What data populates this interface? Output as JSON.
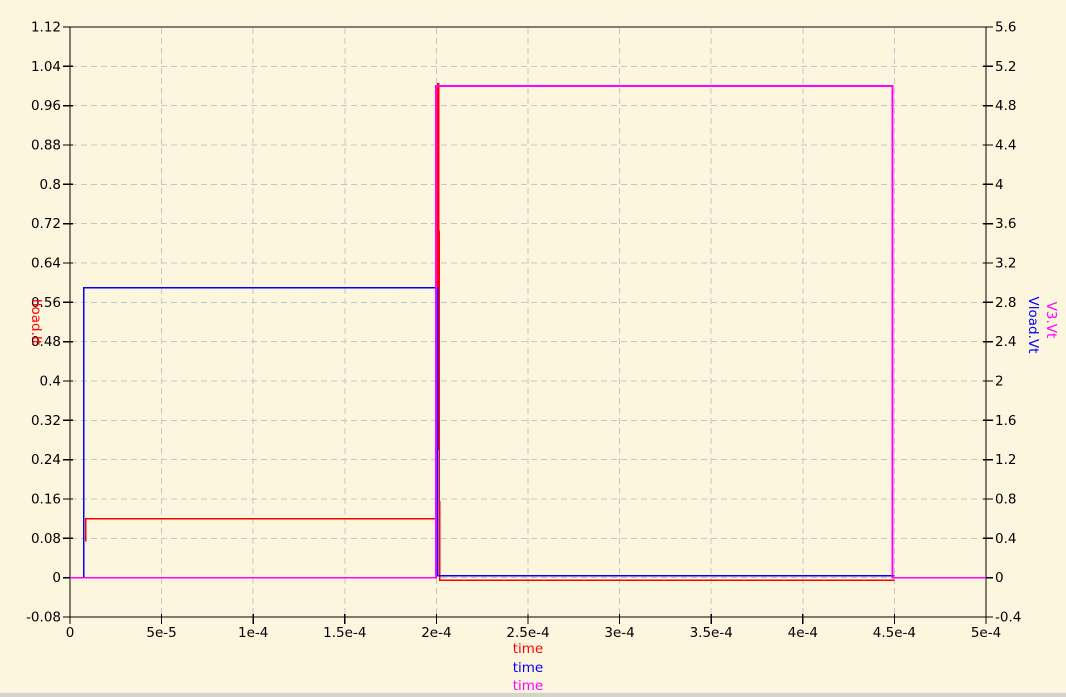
{
  "colors": {
    "background": "#fdf6df",
    "grid": "#c6c6c6",
    "axis": "#000000",
    "bottom_strip": "#d6d3ca"
  },
  "chart_data": {
    "type": "line",
    "title": "",
    "xlabel": "time",
    "xlim": [
      0,
      0.0005
    ],
    "grid": true,
    "legend_position": "none",
    "x_tick_values": [
      0,
      5e-05,
      0.0001,
      0.00015,
      0.0002,
      0.00025,
      0.0003,
      0.00035,
      0.0004,
      0.00045,
      0.0005
    ],
    "x_tick_labels": [
      "0",
      "5e-5",
      "1e-4",
      "1.5e-4",
      "2e-4",
      "2.5e-4",
      "3e-4",
      "3.5e-4",
      "4e-4",
      "4.5e-4",
      "5e-4"
    ],
    "x_axis_titles": [
      {
        "text": "time",
        "color": "#ff0000"
      },
      {
        "text": "time",
        "color": "#0000ff"
      },
      {
        "text": "time",
        "color": "#ff00ff"
      }
    ],
    "y_left": {
      "title": "Iload.It",
      "color": "#ff0000",
      "lim": [
        -0.08,
        1.12
      ],
      "tick_values": [
        1.12,
        1.04,
        0.96,
        0.88,
        0.8,
        0.72,
        0.64,
        0.56,
        0.48,
        0.4,
        0.32,
        0.24,
        0.16,
        0.08,
        0,
        -0.08
      ],
      "tick_labels": [
        "1.12",
        "1.04",
        "0.96",
        "0.88",
        "0.8",
        "0.72",
        "0.64",
        "0.56",
        "0.48",
        "0.4",
        "0.32",
        "0.24",
        "0.16",
        "0.08",
        "0",
        "-0.08"
      ]
    },
    "y_right": {
      "titles": [
        {
          "text": "Vload.Vt",
          "color": "#0000ff"
        },
        {
          "text": "V3.Vt",
          "color": "#ff00ff"
        }
      ],
      "lim": [
        -0.4,
        5.6
      ],
      "tick_values": [
        5.6,
        5.2,
        4.8,
        4.4,
        4,
        3.6,
        3.2,
        2.8,
        2.4,
        2,
        1.6,
        1.2,
        0.8,
        0.4,
        0,
        -0.4
      ],
      "tick_labels": [
        "5.6",
        "5.2",
        "4.8",
        "4.4",
        "4",
        "3.6",
        "3.2",
        "2.8",
        "2.4",
        "2",
        "1.6",
        "1.2",
        "0.8",
        "0.4",
        "0",
        "-0.4"
      ]
    },
    "series": [
      {
        "name": "Iload.It",
        "color": "#ff0000",
        "axis": "left",
        "width": 1.4,
        "points": [
          [
            8.5e-06,
            0.074
          ],
          [
            8.5e-06,
            0.12
          ],
          [
            0.0002008,
            0.12
          ],
          [
            0.0002008,
            1.005
          ],
          [
            0.0002013,
            1.005
          ],
          [
            0.0002018,
            -0.005
          ],
          [
            0.00045,
            -0.005
          ]
        ]
      },
      {
        "name": "Vload.Vt",
        "color": "#0000ff",
        "axis": "right",
        "width": 1.4,
        "points": [
          [
            0,
            0
          ],
          [
            7.6e-06,
            0
          ],
          [
            7.6e-06,
            2.95
          ],
          [
            0.0002007,
            2.95
          ],
          [
            0.0002007,
            0.02
          ],
          [
            0.00045,
            0.02
          ]
        ]
      },
      {
        "name": "V3.Vt",
        "color": "#ff00ff",
        "axis": "right",
        "width": 1.8,
        "points": [
          [
            0,
            0
          ],
          [
            0.0001998,
            0
          ],
          [
            0.0001998,
            5
          ],
          [
            0.000449,
            5
          ],
          [
            0.000449,
            0
          ],
          [
            0.0005,
            0
          ]
        ]
      }
    ]
  }
}
